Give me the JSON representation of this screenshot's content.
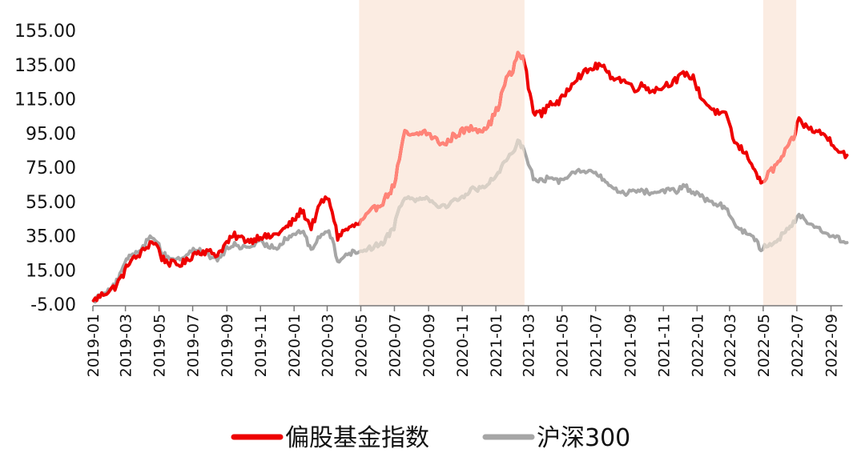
{
  "chart_data": {
    "type": "line",
    "title": "",
    "xlabel": "",
    "ylabel": "",
    "ylim": [
      -5,
      155
    ],
    "y_ticks": [
      "-5.00",
      "15.00",
      "35.00",
      "55.00",
      "75.00",
      "95.00",
      "115.00",
      "135.00",
      "155.00"
    ],
    "x_range": [
      "2019-01",
      "2022-09"
    ],
    "x_ticks": [
      "2019-01",
      "2019-03",
      "2019-05",
      "2019-07",
      "2019-09",
      "2019-11",
      "2020-01",
      "2020-03",
      "2020-05",
      "2020-07",
      "2020-09",
      "2020-11",
      "2021-01",
      "2021-03",
      "2021-05",
      "2021-07",
      "2021-09",
      "2021-11",
      "2022-01",
      "2022-03",
      "2022-05",
      "2022-07",
      "2022-09"
    ],
    "grid": false,
    "legend_position": "bottom",
    "shaded_periods": [
      {
        "start": "2020-04-28",
        "end": "2021-02-22",
        "color": "#fbece2"
      },
      {
        "start": "2022-05-01",
        "end": "2022-06-30",
        "color": "#fbece2"
      }
    ],
    "series": [
      {
        "name": "偏股基金指数",
        "color": "#ee0000",
        "highlight_color": "#ff8478",
        "points": [
          [
            "2019-01-02",
            -3
          ],
          [
            "2019-01-20",
            1
          ],
          [
            "2019-02-10",
            5
          ],
          [
            "2019-02-28",
            14
          ],
          [
            "2019-03-08",
            20
          ],
          [
            "2019-03-20",
            22
          ],
          [
            "2019-04-05",
            27
          ],
          [
            "2019-04-18",
            32
          ],
          [
            "2019-04-28",
            29
          ],
          [
            "2019-05-06",
            22
          ],
          [
            "2019-05-20",
            19
          ],
          [
            "2019-06-05",
            18
          ],
          [
            "2019-06-20",
            20
          ],
          [
            "2019-07-05",
            25
          ],
          [
            "2019-07-20",
            26
          ],
          [
            "2019-08-05",
            25
          ],
          [
            "2019-08-15",
            24
          ],
          [
            "2019-09-01",
            31
          ],
          [
            "2019-09-15",
            35
          ],
          [
            "2019-10-01",
            33
          ],
          [
            "2019-10-15",
            32
          ],
          [
            "2019-11-01",
            35
          ],
          [
            "2019-11-15",
            34
          ],
          [
            "2019-12-01",
            36
          ],
          [
            "2019-12-15",
            39
          ],
          [
            "2020-01-01",
            44
          ],
          [
            "2020-01-15",
            50
          ],
          [
            "2020-02-01",
            40
          ],
          [
            "2020-02-20",
            55
          ],
          [
            "2020-03-01",
            57
          ],
          [
            "2020-03-10",
            50
          ],
          [
            "2020-03-20",
            34
          ],
          [
            "2020-04-01",
            38
          ],
          [
            "2020-04-28",
            42
          ],
          [
            "2020-05-20",
            49
          ],
          [
            "2020-06-10",
            55
          ],
          [
            "2020-06-30",
            64
          ],
          [
            "2020-07-10",
            80
          ],
          [
            "2020-07-20",
            95
          ],
          [
            "2020-08-05",
            93
          ],
          [
            "2020-08-25",
            96
          ],
          [
            "2020-09-10",
            92
          ],
          [
            "2020-09-30",
            88
          ],
          [
            "2020-10-15",
            93
          ],
          [
            "2020-11-01",
            96
          ],
          [
            "2020-11-20",
            98
          ],
          [
            "2020-12-05",
            97
          ],
          [
            "2020-12-20",
            100
          ],
          [
            "2021-01-05",
            110
          ],
          [
            "2021-01-20",
            127
          ],
          [
            "2021-02-01",
            131
          ],
          [
            "2021-02-10",
            142
          ],
          [
            "2021-02-22",
            137
          ],
          [
            "2021-03-01",
            122
          ],
          [
            "2021-03-10",
            108
          ],
          [
            "2021-03-25",
            106
          ],
          [
            "2021-04-10",
            113
          ],
          [
            "2021-04-25",
            112
          ],
          [
            "2021-05-10",
            120
          ],
          [
            "2021-05-25",
            127
          ],
          [
            "2021-06-10",
            130
          ],
          [
            "2021-06-25",
            133
          ],
          [
            "2021-07-10",
            135
          ],
          [
            "2021-07-25",
            129
          ],
          [
            "2021-08-10",
            127
          ],
          [
            "2021-08-25",
            125
          ],
          [
            "2021-09-10",
            121
          ],
          [
            "2021-09-25",
            123
          ],
          [
            "2021-10-10",
            120
          ],
          [
            "2021-10-25",
            121
          ],
          [
            "2021-11-10",
            124
          ],
          [
            "2021-11-25",
            126
          ],
          [
            "2021-12-10",
            130
          ],
          [
            "2021-12-25",
            127
          ],
          [
            "2022-01-10",
            115
          ],
          [
            "2022-01-25",
            110
          ],
          [
            "2022-02-10",
            106
          ],
          [
            "2022-02-25",
            105
          ],
          [
            "2022-03-10",
            89
          ],
          [
            "2022-03-25",
            85
          ],
          [
            "2022-04-10",
            78
          ],
          [
            "2022-04-27",
            65
          ],
          [
            "2022-05-10",
            71
          ],
          [
            "2022-05-25",
            76
          ],
          [
            "2022-06-10",
            84
          ],
          [
            "2022-06-25",
            92
          ],
          [
            "2022-07-05",
            103
          ],
          [
            "2022-07-20",
            98
          ],
          [
            "2022-08-05",
            96
          ],
          [
            "2022-08-20",
            94
          ],
          [
            "2022-09-05",
            89
          ],
          [
            "2022-09-15",
            85
          ],
          [
            "2022-09-30",
            82
          ]
        ]
      },
      {
        "name": "沪深300",
        "color": "#a6a6a6",
        "highlight_color": "#d9d0c6",
        "points": [
          [
            "2019-01-02",
            -3
          ],
          [
            "2019-01-20",
            2
          ],
          [
            "2019-02-10",
            6
          ],
          [
            "2019-02-28",
            18
          ],
          [
            "2019-03-08",
            24
          ],
          [
            "2019-03-20",
            25
          ],
          [
            "2019-04-05",
            30
          ],
          [
            "2019-04-18",
            35
          ],
          [
            "2019-04-28",
            32
          ],
          [
            "2019-05-06",
            25
          ],
          [
            "2019-05-20",
            22
          ],
          [
            "2019-06-05",
            21
          ],
          [
            "2019-06-20",
            24
          ],
          [
            "2019-07-05",
            27
          ],
          [
            "2019-07-20",
            26
          ],
          [
            "2019-08-05",
            22
          ],
          [
            "2019-08-15",
            21
          ],
          [
            "2019-09-01",
            27
          ],
          [
            "2019-09-15",
            30
          ],
          [
            "2019-10-01",
            28
          ],
          [
            "2019-10-15",
            29
          ],
          [
            "2019-11-01",
            31
          ],
          [
            "2019-11-15",
            29
          ],
          [
            "2019-12-01",
            28
          ],
          [
            "2019-12-15",
            33
          ],
          [
            "2020-01-01",
            36
          ],
          [
            "2020-01-15",
            38
          ],
          [
            "2020-02-01",
            27
          ],
          [
            "2020-02-20",
            36
          ],
          [
            "2020-03-01",
            38
          ],
          [
            "2020-03-10",
            33
          ],
          [
            "2020-03-20",
            20
          ],
          [
            "2020-04-01",
            24
          ],
          [
            "2020-04-28",
            26
          ],
          [
            "2020-05-20",
            28
          ],
          [
            "2020-06-10",
            31
          ],
          [
            "2020-06-30",
            40
          ],
          [
            "2020-07-10",
            52
          ],
          [
            "2020-07-20",
            58
          ],
          [
            "2020-08-05",
            56
          ],
          [
            "2020-08-25",
            58
          ],
          [
            "2020-09-10",
            54
          ],
          [
            "2020-09-30",
            52
          ],
          [
            "2020-10-15",
            55
          ],
          [
            "2020-11-01",
            58
          ],
          [
            "2020-11-20",
            62
          ],
          [
            "2020-12-05",
            63
          ],
          [
            "2020-12-20",
            66
          ],
          [
            "2021-01-05",
            72
          ],
          [
            "2021-01-20",
            80
          ],
          [
            "2021-02-01",
            82
          ],
          [
            "2021-02-10",
            90
          ],
          [
            "2021-02-22",
            86
          ],
          [
            "2021-03-01",
            78
          ],
          [
            "2021-03-10",
            69
          ],
          [
            "2021-03-25",
            67
          ],
          [
            "2021-04-10",
            69
          ],
          [
            "2021-04-25",
            67
          ],
          [
            "2021-05-10",
            70
          ],
          [
            "2021-05-25",
            73
          ],
          [
            "2021-06-10",
            72
          ],
          [
            "2021-06-25",
            73
          ],
          [
            "2021-07-10",
            69
          ],
          [
            "2021-07-25",
            65
          ],
          [
            "2021-08-10",
            61
          ],
          [
            "2021-08-25",
            60
          ],
          [
            "2021-09-10",
            62
          ],
          [
            "2021-09-25",
            61
          ],
          [
            "2021-10-10",
            60
          ],
          [
            "2021-10-25",
            61
          ],
          [
            "2021-11-10",
            62
          ],
          [
            "2021-11-25",
            61
          ],
          [
            "2021-12-10",
            64
          ],
          [
            "2021-12-25",
            60
          ],
          [
            "2022-01-10",
            58
          ],
          [
            "2022-01-25",
            54
          ],
          [
            "2022-02-10",
            53
          ],
          [
            "2022-02-25",
            51
          ],
          [
            "2022-03-10",
            41
          ],
          [
            "2022-03-25",
            38
          ],
          [
            "2022-04-10",
            36
          ],
          [
            "2022-04-27",
            27
          ],
          [
            "2022-05-10",
            30
          ],
          [
            "2022-05-25",
            32
          ],
          [
            "2022-06-10",
            37
          ],
          [
            "2022-06-25",
            42
          ],
          [
            "2022-07-05",
            48
          ],
          [
            "2022-07-20",
            43
          ],
          [
            "2022-08-05",
            40
          ],
          [
            "2022-08-20",
            37
          ],
          [
            "2022-09-05",
            35
          ],
          [
            "2022-09-15",
            33
          ],
          [
            "2022-09-30",
            31
          ]
        ]
      }
    ]
  }
}
